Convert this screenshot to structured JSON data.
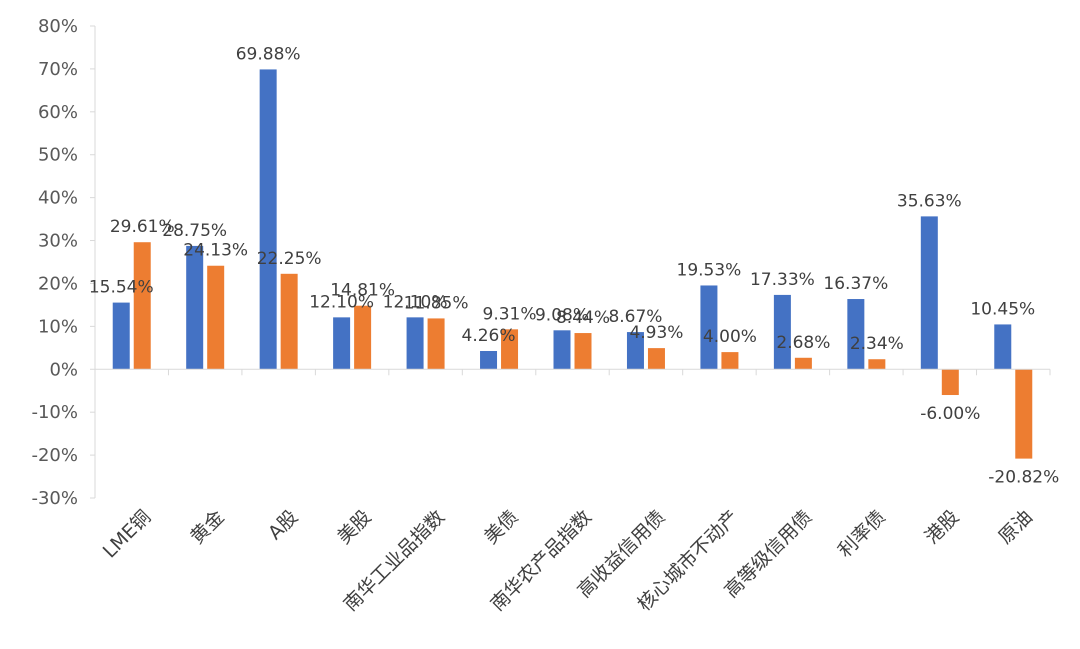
{
  "chart_data": {
    "type": "bar",
    "categories": [
      "LME铜",
      "黄金",
      "A股",
      "美股",
      "南华工业品指数",
      "美债",
      "南华农产品指数",
      "高收益信用债",
      "核心城市不动产",
      "高等级信用债",
      "利率债",
      "港股",
      "原油"
    ],
    "series": [
      {
        "color": "#4472C4",
        "values": [
          15.54,
          28.75,
          69.88,
          12.1,
          12.1,
          4.26,
          9.08,
          8.67,
          19.53,
          17.33,
          16.37,
          35.63,
          10.45
        ],
        "labels": [
          "15.54%",
          "28.75%",
          "69.88%",
          "12.10%",
          "12.10%",
          "4.26%",
          "9.08%",
          "8.67%",
          "19.53%",
          "17.33%",
          "16.37%",
          "35.63%",
          "10.45%"
        ]
      },
      {
        "color": "#ED7D31",
        "values": [
          29.61,
          24.13,
          22.25,
          14.81,
          11.85,
          9.31,
          8.44,
          4.93,
          4.0,
          2.68,
          2.34,
          -6.0,
          -20.82
        ],
        "labels": [
          "29.61%",
          "24.13%",
          "22.25%",
          "14.81%",
          "11.85%",
          "9.31%",
          "8.44%",
          "4.93%",
          "4.00%",
          "2.68%",
          "2.34%",
          "-6.00%",
          "-20.82%"
        ]
      }
    ],
    "yticks": [
      "80%",
      "70%",
      "60%",
      "50%",
      "40%",
      "30%",
      "20%",
      "10%",
      "0%",
      "-10%",
      "-20%",
      "-30%"
    ],
    "ylim": [
      -30,
      80
    ],
    "title": "",
    "xlabel": "",
    "ylabel": "",
    "grid": false
  }
}
